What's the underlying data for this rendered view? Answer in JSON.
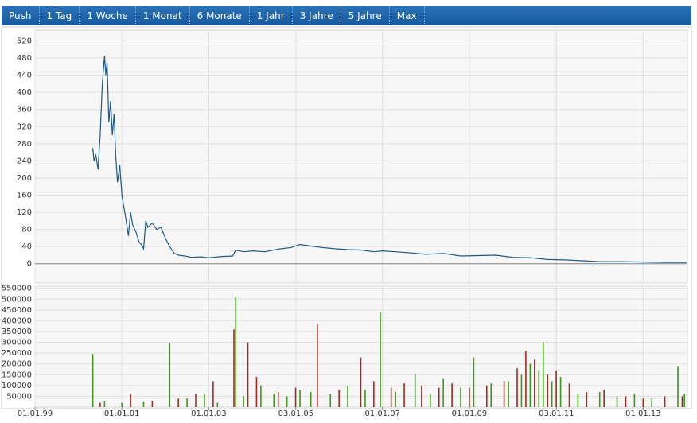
{
  "toolbar": {
    "tabs": [
      "Push",
      "1 Tag",
      "1 Woche",
      "1 Monat",
      "6 Monate",
      "1 Jahr",
      "3 Jahre",
      "5 Jahre",
      "Max"
    ]
  },
  "chart_data": [
    {
      "type": "line",
      "color": "#1d5a86",
      "x": [
        2000.33,
        2000.36,
        2000.4,
        2000.45,
        2000.5,
        2000.55,
        2000.6,
        2000.63,
        2000.66,
        2000.7,
        2000.74,
        2000.78,
        2000.82,
        2000.86,
        2000.9,
        2000.95,
        2001.0,
        2001.05,
        2001.1,
        2001.15,
        2001.2,
        2001.25,
        2001.32,
        2001.4,
        2001.45,
        2001.5,
        2001.55,
        2001.6,
        2001.7,
        2001.8,
        2001.9,
        2002.0,
        2002.1,
        2002.2,
        2002.3,
        2002.45,
        2002.6,
        2002.8,
        2003.0,
        2003.3,
        2003.55,
        2003.62,
        2003.8,
        2004.0,
        2004.3,
        2004.6,
        2004.9,
        2005.1,
        2005.3,
        2005.6,
        2005.9,
        2006.2,
        2006.5,
        2006.8,
        2007.0,
        2007.3,
        2007.7,
        2008.0,
        2008.4,
        2008.8,
        2009.2,
        2009.6,
        2010.0,
        2010.4,
        2010.8,
        2011.2,
        2011.6,
        2012.0,
        2012.5,
        2013.0,
        2013.5,
        2014.0
      ],
      "values": [
        270,
        240,
        255,
        220,
        300,
        420,
        485,
        440,
        470,
        330,
        380,
        300,
        350,
        250,
        190,
        230,
        160,
        130,
        100,
        65,
        120,
        90,
        75,
        50,
        45,
        35,
        100,
        85,
        95,
        80,
        85,
        60,
        40,
        25,
        20,
        18,
        15,
        16,
        14,
        17,
        18,
        32,
        28,
        30,
        28,
        34,
        38,
        45,
        42,
        38,
        35,
        33,
        32,
        28,
        30,
        28,
        25,
        22,
        24,
        18,
        19,
        20,
        15,
        14,
        10,
        9,
        7,
        5,
        5,
        4,
        3,
        3
      ],
      "xlim": [
        1999,
        2014.02
      ],
      "ylim": [
        -45,
        545
      ],
      "yticks": [
        0,
        40,
        80,
        120,
        160,
        200,
        240,
        280,
        320,
        360,
        400,
        440,
        480,
        520
      ],
      "grid": true
    },
    {
      "type": "bar",
      "series": [
        {
          "color": "#3c9a14",
          "x": [
            2000.33,
            2000.6,
            2001.0,
            2001.5,
            2002.1,
            2002.5,
            2002.9,
            2003.2,
            2003.62,
            2003.8,
            2004.2,
            2004.5,
            2004.8,
            2005.1,
            2005.35,
            2005.8,
            2006.2,
            2006.6,
            2006.95,
            2007.3,
            2007.75,
            2008.1,
            2008.4,
            2008.8,
            2009.1,
            2009.5,
            2009.9,
            2010.2,
            2010.4,
            2010.6,
            2010.7,
            2010.9,
            2011.1,
            2011.5,
            2012.0,
            2012.4,
            2012.8,
            2013.2,
            2013.8,
            2013.95
          ],
          "values": [
            245000,
            30000,
            20000,
            25000,
            295000,
            40000,
            60000,
            20000,
            510000,
            50000,
            100000,
            60000,
            50000,
            80000,
            70000,
            60000,
            100000,
            80000,
            440000,
            70000,
            150000,
            60000,
            130000,
            90000,
            230000,
            110000,
            120000,
            150000,
            200000,
            170000,
            300000,
            120000,
            140000,
            60000,
            70000,
            50000,
            60000,
            40000,
            190000,
            60000
          ]
        },
        {
          "color": "#a52a1e",
          "x": [
            2000.5,
            2001.2,
            2001.7,
            2002.3,
            2002.7,
            2003.1,
            2003.58,
            2003.9,
            2004.1,
            2004.6,
            2005.0,
            2005.5,
            2006.0,
            2006.5,
            2006.8,
            2007.2,
            2007.5,
            2007.9,
            2008.3,
            2008.6,
            2009.0,
            2009.4,
            2009.8,
            2010.1,
            2010.3,
            2010.5,
            2010.8,
            2011.0,
            2011.3,
            2011.7,
            2012.1,
            2012.6,
            2013.0,
            2013.5,
            2013.9
          ],
          "values": [
            20000,
            60000,
            30000,
            40000,
            60000,
            120000,
            360000,
            300000,
            140000,
            70000,
            90000,
            385000,
            80000,
            230000,
            120000,
            90000,
            110000,
            100000,
            90000,
            110000,
            90000,
            100000,
            120000,
            180000,
            260000,
            220000,
            150000,
            170000,
            110000,
            70000,
            80000,
            50000,
            40000,
            50000,
            50000
          ]
        }
      ],
      "xlim": [
        1999,
        2014.02
      ],
      "ylim": [
        0,
        560000
      ],
      "yticks": [
        50000,
        100000,
        150000,
        200000,
        250000,
        300000,
        350000,
        400000,
        450000,
        500000,
        550000
      ],
      "xticks": [
        {
          "value": 1999,
          "label": "01.01.99"
        },
        {
          "value": 2001,
          "label": "01.01.01"
        },
        {
          "value": 2003,
          "label": "01.01.03"
        },
        {
          "value": 2005.005,
          "label": "03.01.05"
        },
        {
          "value": 2007,
          "label": "01.01.07"
        },
        {
          "value": 2009,
          "label": "01.01.09"
        },
        {
          "value": 2011.005,
          "label": "03.01.11"
        },
        {
          "value": 2013,
          "label": "01.01.13"
        }
      ],
      "grid": true
    }
  ]
}
